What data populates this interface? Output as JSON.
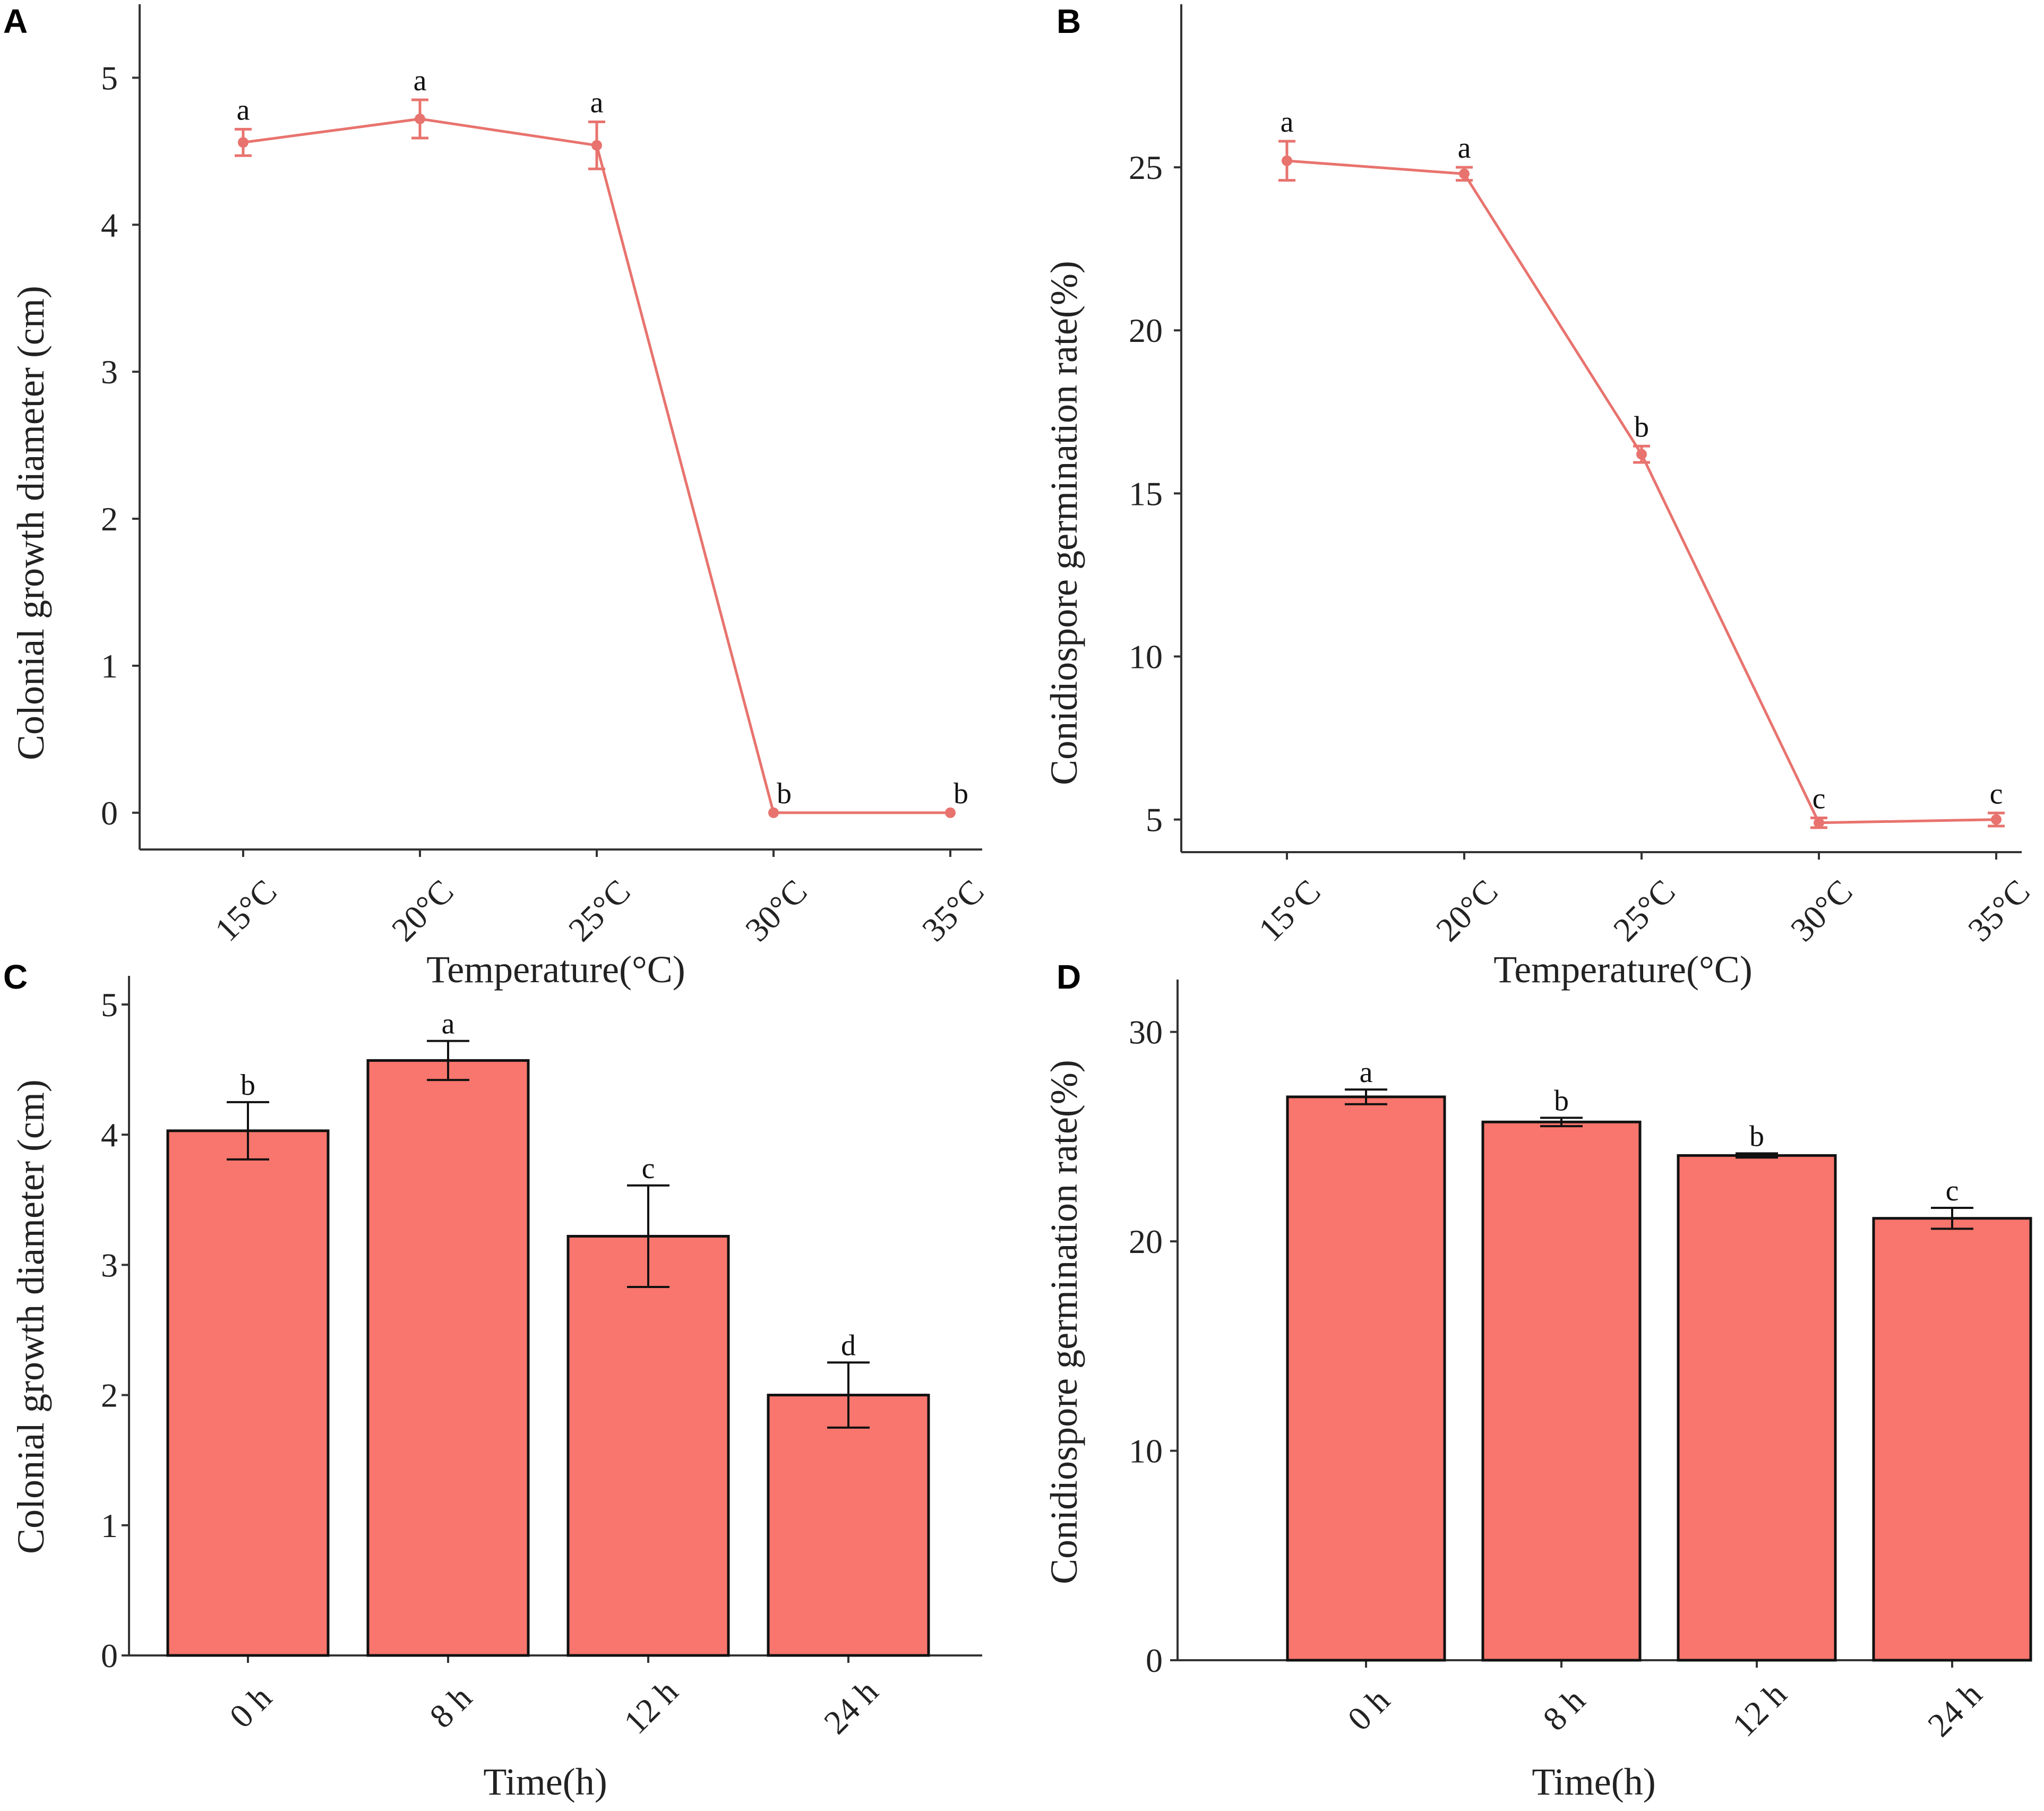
{
  "chart_data": [
    {
      "panel": "A",
      "type": "line",
      "xlabel": "Temperature(°C)",
      "ylabel": "Colonial growth diameter (cm)",
      "categories": [
        "15°C",
        "20°C",
        "25°C",
        "30°C",
        "35°C"
      ],
      "values": [
        4.56,
        4.72,
        4.54,
        0.0,
        0.0
      ],
      "errors": [
        0.09,
        0.13,
        0.16,
        0.0,
        0.0
      ],
      "significance": [
        "a",
        "a",
        "a",
        "b",
        "b"
      ],
      "ylim": [
        -0.25,
        5.5
      ],
      "yticks": [
        0,
        1,
        2,
        3,
        4,
        5
      ],
      "color": "#E8736E"
    },
    {
      "panel": "B",
      "type": "line",
      "xlabel": "Temperature(°C)",
      "ylabel": "Conidiospore germination rate(%)",
      "categories": [
        "15°C",
        "20°C",
        "25°C",
        "30°C",
        "35°C"
      ],
      "values": [
        25.2,
        24.8,
        16.2,
        4.9,
        5.0
      ],
      "errors": [
        0.6,
        0.2,
        0.25,
        0.15,
        0.2
      ],
      "significance": [
        "a",
        "a",
        "b",
        "c",
        "c"
      ],
      "ylim": [
        4.0,
        30.0
      ],
      "yticks": [
        5,
        10,
        15,
        20,
        25
      ],
      "color": "#E8736E"
    },
    {
      "panel": "C",
      "type": "bar",
      "xlabel": "Time(h)",
      "ylabel": "Colonial growth diameter (cm)",
      "categories": [
        "0 h",
        "8 h",
        "12 h",
        "24 h"
      ],
      "values": [
        4.03,
        4.57,
        3.22,
        2.0
      ],
      "errors": [
        0.22,
        0.15,
        0.39,
        0.25
      ],
      "significance": [
        "b",
        "a",
        "c",
        "d"
      ],
      "ylim": [
        0,
        5.22
      ],
      "yticks": [
        0,
        1,
        2,
        3,
        4,
        5
      ],
      "color": "#F8766D"
    },
    {
      "panel": "D",
      "type": "bar",
      "xlabel": "Time(h)",
      "ylabel": "Conidiospore germination rate(%)",
      "categories": [
        "0 h",
        "8 h",
        "12 h",
        "24 h"
      ],
      "values": [
        26.9,
        25.7,
        24.1,
        21.1
      ],
      "errors": [
        0.35,
        0.2,
        0.1,
        0.5
      ],
      "significance": [
        "a",
        "b",
        "b",
        "c"
      ],
      "ylim": [
        0,
        32.5
      ],
      "yticks": [
        0,
        10,
        20,
        30
      ],
      "color": "#F8766D"
    }
  ]
}
